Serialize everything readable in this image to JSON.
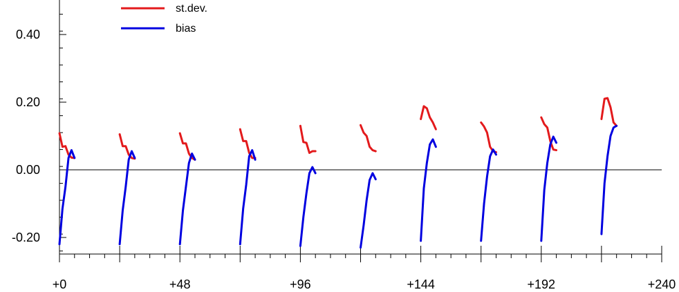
{
  "chart_data": {
    "type": "line",
    "x_ticks": [
      {
        "value": 0,
        "label": "+0"
      },
      {
        "value": 48,
        "label": "+48"
      },
      {
        "value": 96,
        "label": "+96"
      },
      {
        "value": 144,
        "label": "+144"
      },
      {
        "value": 192,
        "label": "+192"
      },
      {
        "value": 240,
        "label": "+240"
      }
    ],
    "y_ticks": [
      {
        "value": 0.4,
        "label": "0.40"
      },
      {
        "value": 0.2,
        "label": "0.20"
      },
      {
        "value": 0.0,
        "label": "0.00"
      },
      {
        "value": -0.2,
        "label": "-0.20"
      }
    ],
    "xlim": [
      0,
      240
    ],
    "ylim": [
      -0.255,
      0.5
    ],
    "zero_line": true,
    "legend_position": "top-left",
    "series": [
      {
        "name": "st.dev.",
        "color": "#e31a1c",
        "segments": [
          {
            "start": 0,
            "values": [
              0.108,
              0.068,
              0.07,
              0.045,
              0.036,
              0.035
            ]
          },
          {
            "start": 24,
            "values": [
              0.105,
              0.07,
              0.07,
              0.045,
              0.035,
              0.033
            ]
          },
          {
            "start": 48,
            "values": [
              0.108,
              0.078,
              0.078,
              0.048,
              0.035,
              0.03
            ]
          },
          {
            "start": 72,
            "values": [
              0.12,
              0.085,
              0.085,
              0.05,
              0.035,
              0.035
            ]
          },
          {
            "start": 96,
            "values": [
              0.13,
              0.082,
              0.08,
              0.05,
              0.055,
              0.055
            ]
          },
          {
            "start": 120,
            "values": [
              0.132,
              0.11,
              0.1,
              0.068,
              0.058,
              0.055
            ]
          },
          {
            "start": 144,
            "values": [
              0.15,
              0.188,
              0.182,
              0.155,
              0.14,
              0.12
            ]
          },
          {
            "start": 168,
            "values": [
              0.14,
              0.128,
              0.11,
              0.068,
              0.055,
              0.052
            ]
          },
          {
            "start": 192,
            "values": [
              0.155,
              0.135,
              0.125,
              0.085,
              0.06,
              0.058
            ]
          },
          {
            "start": 216,
            "values": [
              0.15,
              0.21,
              0.212,
              0.185,
              0.14,
              0.13
            ]
          }
        ]
      },
      {
        "name": "bias",
        "color": "#0000e0",
        "segments": [
          {
            "start": 0,
            "values": [
              -0.22,
              -0.115,
              -0.05,
              0.035,
              0.058,
              0.035
            ]
          },
          {
            "start": 24,
            "values": [
              -0.22,
              -0.12,
              -0.05,
              0.03,
              0.055,
              0.035
            ]
          },
          {
            "start": 48,
            "values": [
              -0.22,
              -0.12,
              -0.05,
              0.02,
              0.048,
              0.03
            ]
          },
          {
            "start": 72,
            "values": [
              -0.22,
              -0.115,
              -0.045,
              0.04,
              0.058,
              0.03
            ]
          },
          {
            "start": 96,
            "values": [
              -0.225,
              -0.14,
              -0.07,
              -0.01,
              0.008,
              -0.01
            ]
          },
          {
            "start": 120,
            "values": [
              -0.23,
              -0.165,
              -0.09,
              -0.03,
              -0.01,
              -0.028
            ]
          },
          {
            "start": 144,
            "values": [
              -0.21,
              -0.055,
              0.02,
              0.075,
              0.09,
              0.068
            ]
          },
          {
            "start": 168,
            "values": [
              -0.21,
              -0.1,
              -0.02,
              0.04,
              0.06,
              0.045
            ]
          },
          {
            "start": 192,
            "values": [
              -0.21,
              -0.06,
              0.02,
              0.075,
              0.098,
              0.08
            ]
          },
          {
            "start": 216,
            "values": [
              -0.19,
              -0.04,
              0.04,
              0.1,
              0.125,
              0.13
            ]
          }
        ]
      }
    ]
  }
}
